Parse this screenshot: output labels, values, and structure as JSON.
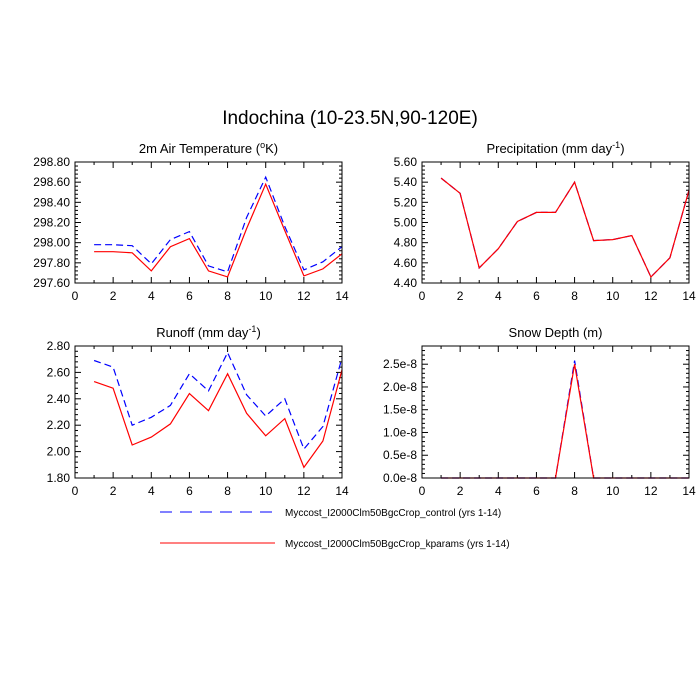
{
  "figure": {
    "title": "Indochina (10-23.5N,90-120E)"
  },
  "legend": [
    {
      "label": "Myccost_I2000Clm50BgcCrop_control (yrs 1-14)",
      "color": "#0000ff",
      "style": "dashed"
    },
    {
      "label": "Myccost_I2000Clm50BgcCrop_kparams (yrs 1-14)",
      "color": "#ff0000",
      "style": "solid"
    }
  ],
  "chart_data": [
    {
      "type": "line",
      "title_main": "2m Air Temperature (",
      "title_sup": "o",
      "title_end": "K)",
      "x": [
        1,
        2,
        3,
        4,
        5,
        6,
        7,
        8,
        9,
        10,
        11,
        12,
        13,
        14
      ],
      "xlim": [
        0,
        14
      ],
      "xticks": [
        "0",
        "2",
        "4",
        "6",
        "8",
        "10",
        "12",
        "14"
      ],
      "ylim": [
        297.6,
        298.8
      ],
      "yticks": [
        "297.60",
        "297.80",
        "298.00",
        "298.20",
        "298.40",
        "298.60",
        "298.80"
      ],
      "series": [
        {
          "name": "Myccost_I2000Clm50BgcCrop_control (yrs 1-14)",
          "color": "#0000ff",
          "dash": true,
          "values": [
            297.98,
            297.98,
            297.97,
            297.79,
            298.03,
            298.11,
            297.77,
            297.71,
            298.25,
            298.65,
            298.16,
            297.73,
            297.81,
            297.96
          ]
        },
        {
          "name": "Myccost_I2000Clm50BgcCrop_kparams (yrs 1-14)",
          "color": "#ff0000",
          "dash": false,
          "values": [
            297.91,
            297.91,
            297.9,
            297.72,
            297.96,
            298.04,
            297.72,
            297.66,
            298.14,
            298.58,
            298.12,
            297.67,
            297.74,
            297.89
          ]
        }
      ]
    },
    {
      "type": "line",
      "title_main": "Precipitation (mm day",
      "title_sup": "-1",
      "title_end": ")",
      "x": [
        1,
        2,
        3,
        4,
        5,
        6,
        7,
        8,
        9,
        10,
        11,
        12,
        13,
        14
      ],
      "xlim": [
        0,
        14
      ],
      "xticks": [
        "0",
        "2",
        "4",
        "6",
        "8",
        "10",
        "12",
        "14"
      ],
      "ylim": [
        4.4,
        5.6
      ],
      "yticks": [
        "4.40",
        "4.60",
        "4.80",
        "5.00",
        "5.20",
        "5.40",
        "5.60"
      ],
      "series": [
        {
          "name": "Myccost_I2000Clm50BgcCrop_control (yrs 1-14)",
          "color": "#0000ff",
          "dash": true,
          "values": [
            5.44,
            5.29,
            4.55,
            4.74,
            5.01,
            5.1,
            5.1,
            5.4,
            4.82,
            4.83,
            4.87,
            4.46,
            4.65,
            5.32
          ]
        },
        {
          "name": "Myccost_I2000Clm50BgcCrop_kparams (yrs 1-14)",
          "color": "#ff0000",
          "dash": false,
          "values": [
            5.44,
            5.29,
            4.55,
            4.74,
            5.01,
            5.1,
            5.1,
            5.4,
            4.82,
            4.83,
            4.87,
            4.46,
            4.65,
            5.32
          ]
        }
      ]
    },
    {
      "type": "line",
      "title_main": "Runoff (mm day",
      "title_sup": "-1",
      "title_end": ")",
      "x": [
        1,
        2,
        3,
        4,
        5,
        6,
        7,
        8,
        9,
        10,
        11,
        12,
        13,
        14
      ],
      "xlim": [
        0,
        14
      ],
      "xticks": [
        "0",
        "2",
        "4",
        "6",
        "8",
        "10",
        "12",
        "14"
      ],
      "ylim": [
        1.8,
        2.8
      ],
      "yticks": [
        "1.80",
        "2.00",
        "2.20",
        "2.40",
        "2.60",
        "2.80"
      ],
      "series": [
        {
          "name": "Myccost_I2000Clm50BgcCrop_control (yrs 1-14)",
          "color": "#0000ff",
          "dash": true,
          "values": [
            2.69,
            2.64,
            2.2,
            2.26,
            2.35,
            2.59,
            2.46,
            2.75,
            2.43,
            2.27,
            2.4,
            2.02,
            2.19,
            2.71
          ]
        },
        {
          "name": "Myccost_I2000Clm50BgcCrop_kparams (yrs 1-14)",
          "color": "#ff0000",
          "dash": false,
          "values": [
            2.53,
            2.48,
            2.05,
            2.11,
            2.21,
            2.44,
            2.31,
            2.59,
            2.29,
            2.12,
            2.25,
            1.88,
            2.08,
            2.62
          ]
        }
      ]
    },
    {
      "type": "line",
      "title_main": "Snow Depth (m)",
      "title_sup": "",
      "title_end": "",
      "x": [
        1,
        2,
        3,
        4,
        5,
        6,
        7,
        8,
        9,
        10,
        11,
        12,
        13,
        14
      ],
      "xlim": [
        0,
        14
      ],
      "xticks": [
        "0",
        "2",
        "4",
        "6",
        "8",
        "10",
        "12",
        "14"
      ],
      "ylim": [
        0,
        2.9
      ],
      "yticks": [
        "0.0e-8",
        "0.5e-8",
        "1.0e-8",
        "1.5e-8",
        "2.0e-8",
        "2.5e-8"
      ],
      "ytick_values": [
        0,
        0.5,
        1.0,
        1.5,
        2.0,
        2.5
      ],
      "yunit_note": "values in units of 1e-8 m",
      "series": [
        {
          "name": "Myccost_I2000Clm50BgcCrop_control (yrs 1-14)",
          "color": "#0000ff",
          "dash": true,
          "values": [
            0,
            0,
            0,
            0,
            0,
            0,
            0,
            2.58,
            0,
            0,
            0,
            0,
            0,
            0
          ]
        },
        {
          "name": "Myccost_I2000Clm50BgcCrop_kparams (yrs 1-14)",
          "color": "#ff0000",
          "dash": false,
          "values": [
            0,
            0,
            0,
            0,
            0,
            0,
            0,
            2.5,
            0,
            0,
            0,
            0,
            0,
            0
          ]
        }
      ]
    }
  ]
}
